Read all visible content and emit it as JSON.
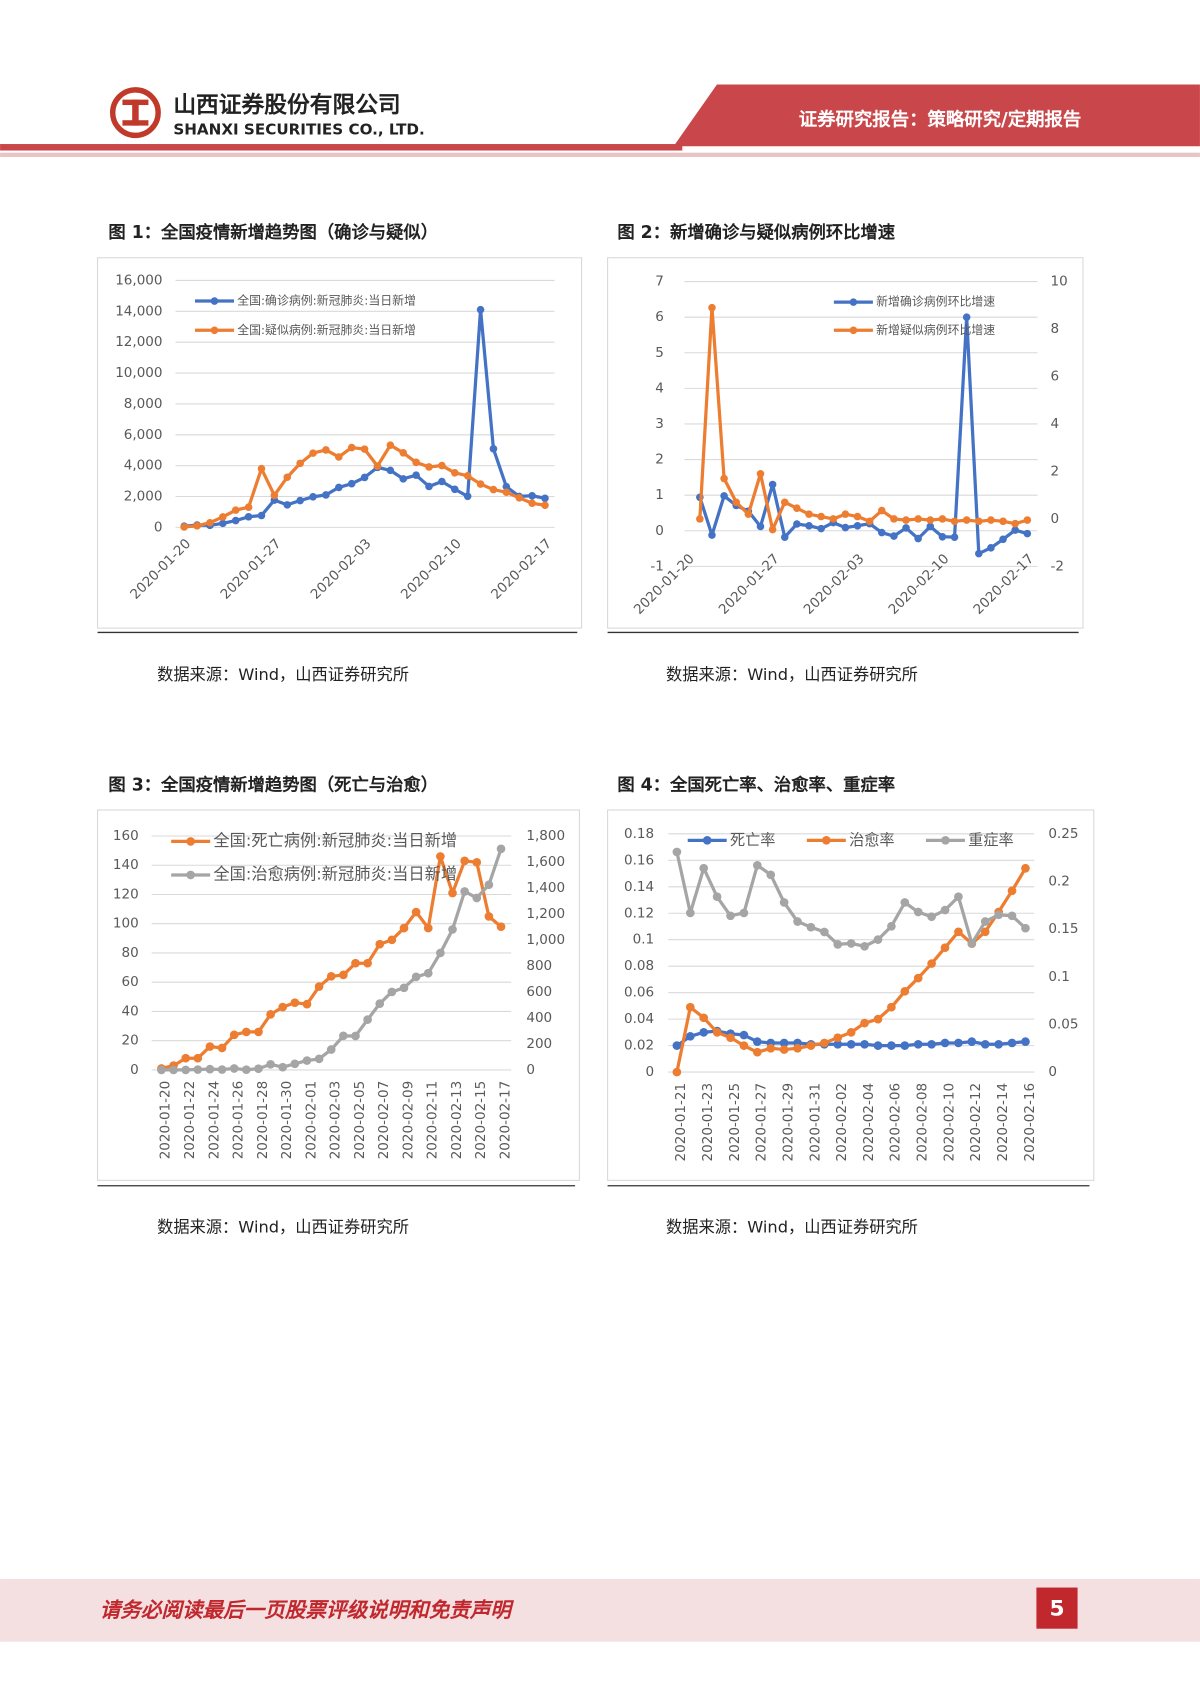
{
  "header": {
    "company_cn": "山西证券股份有限公司",
    "company_en": "SHANXI SECURITIES CO., LTD.",
    "report_type": "证券研究报告：策略研究/定期报告"
  },
  "footer": {
    "disclaimer": "请务必阅读最后一页股票评级说明和免责声明",
    "page": "5"
  },
  "chart_data": [
    {
      "type": "line",
      "title": "图 1：全国疫情新增趋势图（确诊与疑似）",
      "source": "数据来源：Wind，山西证券研究所",
      "categories": [
        "2020-01-20",
        null,
        null,
        null,
        null,
        null,
        null,
        "2020-01-27",
        null,
        null,
        null,
        null,
        null,
        null,
        "2020-02-03",
        null,
        null,
        null,
        null,
        null,
        null,
        "2020-02-10",
        null,
        null,
        null,
        null,
        null,
        null,
        "2020-02-17"
      ],
      "series": [
        {
          "name": "全国:确诊病例:新冠肺炎:当日新增",
          "color": "#4472c4",
          "values": [
            77,
            149,
            131,
            259,
            444,
            688,
            769,
            1771,
            1459,
            1737,
            1982,
            2102,
            2590,
            2829,
            3235,
            3887,
            3694,
            3143,
            3385,
            2652,
            2973,
            2467,
            2015,
            14108,
            5090,
            2641,
            2009,
            2048,
            1886
          ]
        },
        {
          "name": "全国:疑似病例:新冠肺炎:当日新增",
          "color": "#ed7d31",
          "values": [
            27,
            100,
            300,
            680,
            1118,
            1309,
            3806,
            2077,
            3248,
            4148,
            4812,
            5019,
            4562,
            5173,
            5072,
            3971,
            5328,
            4833,
            4214,
            3916,
            4008,
            3536,
            3342,
            2807,
            2450,
            2277,
            1918,
            1563,
            1432
          ]
        }
      ],
      "ylim": [
        0,
        16000
      ],
      "yticks": [
        0,
        {
          "value": 2000,
          "label": "2,000"
        },
        {
          "value": 4000,
          "label": "4,000"
        },
        {
          "value": 6000,
          "label": "6,000"
        },
        {
          "value": 8000,
          "label": "8,000"
        },
        {
          "value": 10000,
          "label": "10,000"
        },
        {
          "value": 12000,
          "label": "12,000"
        },
        {
          "value": 14000,
          "label": "14,000"
        },
        {
          "value": 16000,
          "label": "16,000"
        }
      ],
      "grid": true,
      "legend": "top-left"
    },
    {
      "type": "line",
      "title": "图 2：新增确诊与疑似病例环比增速",
      "source": "数据来源：Wind，山西证券研究所",
      "categories": [
        "2020-01-20",
        null,
        null,
        null,
        null,
        null,
        null,
        "2020-01-27",
        null,
        null,
        null,
        null,
        null,
        null,
        "2020-02-03",
        null,
        null,
        null,
        null,
        null,
        null,
        "2020-02-10",
        null,
        null,
        null,
        null,
        null,
        null,
        "2020-02-17"
      ],
      "series": [
        {
          "name": "新增确诊病例环比增速",
          "color": "#4472c4",
          "values": [
            null,
            0.94,
            -0.12,
            0.98,
            0.71,
            0.55,
            0.12,
            1.3,
            -0.18,
            0.19,
            0.14,
            0.06,
            0.23,
            0.09,
            0.14,
            0.2,
            -0.05,
            -0.15,
            0.08,
            -0.22,
            0.12,
            -0.17,
            -0.18,
            6.0,
            -0.64,
            -0.48,
            -0.24,
            0.02,
            -0.08
          ]
        },
        {
          "name": "新增疑似病例环比增速",
          "color": "#ed7d31",
          "axis": "y2",
          "values": [
            null,
            0,
            8.9,
            1.7,
            0.7,
            0.2,
            1.9,
            -0.45,
            0.7,
            0.45,
            0.2,
            0.1,
            0,
            0.2,
            0.1,
            -0.1,
            0.35,
            0,
            -0.05,
            0,
            -0.05,
            0,
            -0.1,
            -0.05,
            -0.1,
            -0.05,
            -0.1,
            -0.2,
            -0.05
          ]
        }
      ],
      "ylim": [
        -1,
        7
      ],
      "yticks": [
        -1,
        0,
        1,
        2,
        3,
        4,
        5,
        6,
        7
      ],
      "y2lim": [
        -2,
        10
      ],
      "y2ticks": [
        -2,
        0,
        2,
        4,
        6,
        8,
        10
      ],
      "grid": true,
      "legend": "top-right"
    },
    {
      "type": "line",
      "title": "图 3：全国疫情新增趋势图（死亡与治愈）",
      "source": "数据来源：Wind，山西证券研究所",
      "categories": [
        "2020-01-20",
        null,
        "2020-01-22",
        null,
        "2020-01-24",
        null,
        "2020-01-26",
        null,
        "2020-01-28",
        null,
        "2020-01-30",
        null,
        "2020-02-01",
        null,
        "2020-02-03",
        null,
        "2020-02-05",
        null,
        "2020-02-07",
        null,
        "2020-02-09",
        null,
        "2020-02-11",
        null,
        "2020-02-13",
        null,
        "2020-02-15",
        null,
        "2020-02-17"
      ],
      "series": [
        {
          "name": "全国:死亡病例:新冠肺炎:当日新增",
          "color": "#ed7d31",
          "values": [
            1,
            3,
            8,
            8,
            16,
            15,
            24,
            26,
            26,
            38,
            43,
            46,
            45,
            57,
            64,
            65,
            73,
            73,
            86,
            89,
            97,
            108,
            97,
            146,
            121,
            143,
            142,
            105,
            98
          ]
        },
        {
          "name": "全国:治愈病例:新冠肺炎:当日新增",
          "color": "#a5a5a5",
          "axis": "y2",
          "values": [
            0,
            0,
            0,
            3,
            6,
            3,
            11,
            2,
            9,
            43,
            21,
            47,
            72,
            85,
            157,
            262,
            261,
            387,
            510,
            600,
            632,
            716,
            744,
            900,
            1081,
            1373,
            1323,
            1425,
            1701
          ]
        }
      ],
      "ylim": [
        0,
        160
      ],
      "yticks": [
        0,
        20,
        40,
        60,
        80,
        100,
        120,
        140,
        160
      ],
      "y2lim": [
        0,
        1800
      ],
      "y2ticks": [
        0,
        200,
        400,
        600,
        800,
        {
          "value": 1000,
          "label": "1,000"
        },
        {
          "value": 1200,
          "label": "1,200"
        },
        {
          "value": 1400,
          "label": "1,400"
        },
        {
          "value": 1600,
          "label": "1,600"
        },
        {
          "value": 1800,
          "label": "1,800"
        }
      ],
      "grid": true,
      "legend": "top-left"
    },
    {
      "type": "line",
      "title": "图 4：全国死亡率、治愈率、重症率",
      "source": "数据来源：Wind，山西证券研究所",
      "categories": [
        "2020-01-21",
        null,
        "2020-01-23",
        null,
        "2020-01-25",
        null,
        "2020-01-27",
        null,
        "2020-01-29",
        null,
        "2020-01-31",
        null,
        "2020-02-02",
        null,
        "2020-02-04",
        null,
        "2020-02-06",
        null,
        "2020-02-08",
        null,
        "2020-02-10",
        null,
        "2020-02-12",
        null,
        "2020-02-14",
        null,
        "2020-02-16"
      ],
      "series": [
        {
          "name": "死亡率",
          "color": "#4472c4",
          "values": [
            0.02,
            0.027,
            0.03,
            0.031,
            0.029,
            0.028,
            0.023,
            0.022,
            0.022,
            0.022,
            0.021,
            0.021,
            0.021,
            0.021,
            0.021,
            0.02,
            0.02,
            0.02,
            0.021,
            0.021,
            0.022,
            0.022,
            0.023,
            0.021,
            0.021,
            0.022,
            0.023
          ]
        },
        {
          "name": "治愈率",
          "color": "#ed7d31",
          "values": [
            0,
            0.049,
            0.041,
            0.03,
            0.026,
            0.02,
            0.015,
            0.018,
            0.017,
            0.018,
            0.02,
            0.022,
            0.026,
            0.03,
            0.037,
            0.04,
            0.049,
            0.061,
            0.071,
            0.082,
            0.094,
            0.106,
            0.097,
            0.106,
            0.121,
            0.137,
            0.154
          ]
        },
        {
          "name": "重症率",
          "color": "#a5a5a5",
          "axis": "y2",
          "values": [
            0.231,
            0.167,
            0.214,
            0.184,
            0.164,
            0.167,
            0.217,
            0.207,
            0.178,
            0.158,
            0.152,
            0.147,
            0.134,
            0.135,
            0.132,
            0.139,
            0.153,
            0.178,
            0.168,
            0.163,
            0.17,
            0.184,
            0.135,
            0.158,
            0.165,
            0.164,
            0.151
          ]
        }
      ],
      "ylim": [
        0,
        0.18
      ],
      "yticks": [
        0,
        0.02,
        0.04,
        0.06,
        0.08,
        0.1,
        0.12,
        0.14,
        0.16,
        0.18
      ],
      "y2lim": [
        0,
        0.25
      ],
      "y2ticks": [
        0,
        0.05,
        0.1,
        0.15,
        0.2,
        0.25
      ],
      "grid": true,
      "legend": "top"
    }
  ]
}
